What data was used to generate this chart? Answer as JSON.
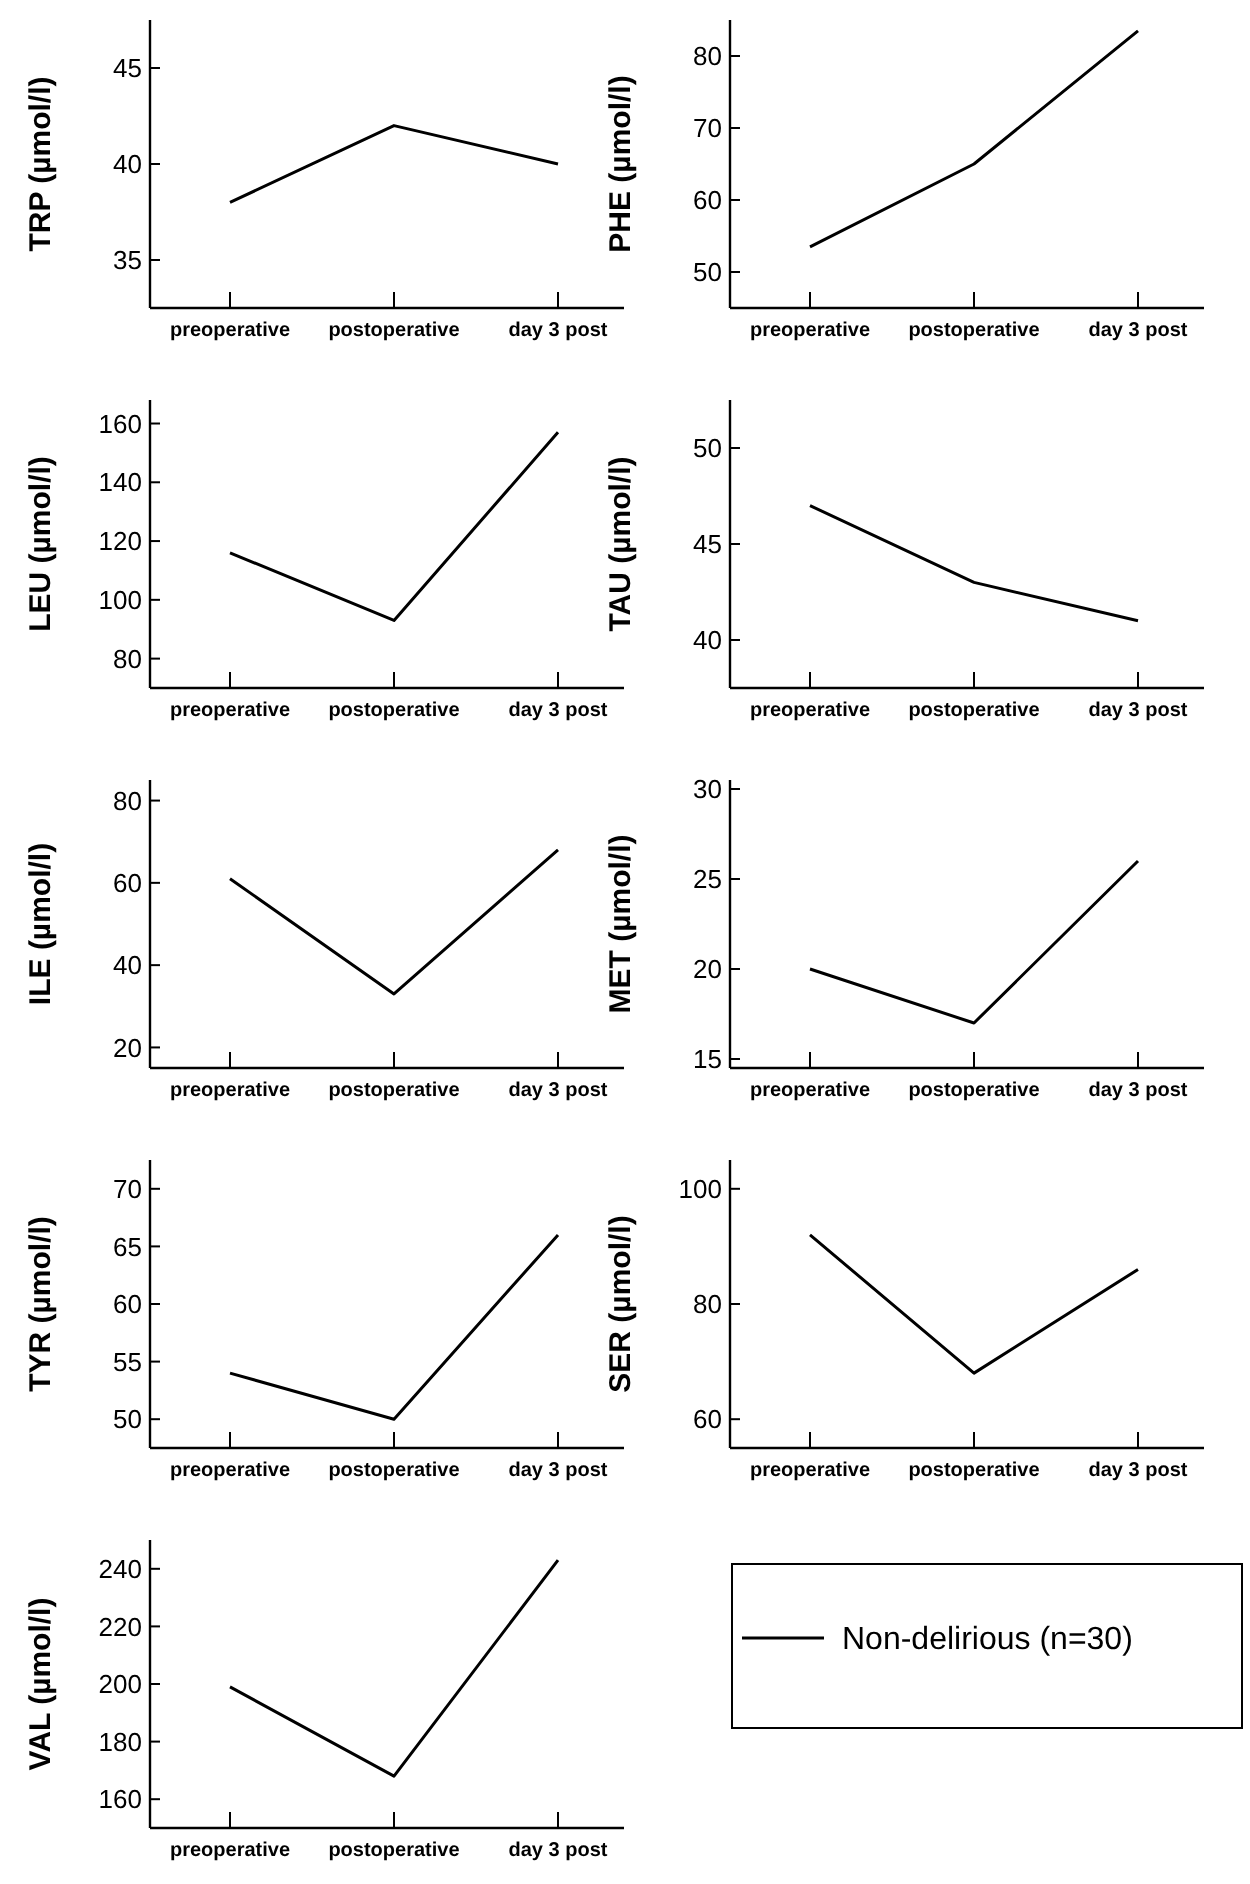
{
  "chart_data": [
    {
      "type": "line",
      "ylabel": "TRP (µmol/l)",
      "categories": [
        "preoperative",
        "postoperative",
        "day 3 post"
      ],
      "ylim": [
        32.5,
        47.5
      ],
      "yticks": [
        35,
        40,
        45
      ],
      "series": [
        {
          "color": "#000000",
          "values": [
            38,
            42,
            40
          ]
        }
      ]
    },
    {
      "type": "line",
      "ylabel": "PHE (µmol/l)",
      "categories": [
        "preoperative",
        "postoperative",
        "day 3 post"
      ],
      "ylim": [
        45,
        85
      ],
      "yticks": [
        50,
        60,
        70,
        80
      ],
      "series": [
        {
          "color": "#000000",
          "values": [
            53.5,
            65,
            83.5
          ]
        }
      ]
    },
    {
      "type": "line",
      "ylabel": "LEU (µmol/l)",
      "categories": [
        "preoperative",
        "postoperative",
        "day 3 post"
      ],
      "ylim": [
        70,
        168
      ],
      "yticks": [
        80,
        100,
        120,
        140,
        160
      ],
      "series": [
        {
          "color": "#000000",
          "values": [
            116,
            93,
            157
          ]
        }
      ]
    },
    {
      "type": "line",
      "ylabel": "TAU (µmol/l)",
      "categories": [
        "preoperative",
        "postoperative",
        "day 3 post"
      ],
      "ylim": [
        37.5,
        52.5
      ],
      "yticks": [
        40,
        45,
        50
      ],
      "series": [
        {
          "color": "#000000",
          "values": [
            47,
            43,
            41
          ]
        }
      ]
    },
    {
      "type": "line",
      "ylabel": "ILE (µmol/l)",
      "categories": [
        "preoperative",
        "postoperative",
        "day 3 post"
      ],
      "ylim": [
        15,
        85
      ],
      "yticks": [
        20,
        40,
        60,
        80
      ],
      "series": [
        {
          "color": "#000000",
          "values": [
            61,
            33,
            68
          ]
        }
      ]
    },
    {
      "type": "line",
      "ylabel": "MET (µmol/l)",
      "categories": [
        "preoperative",
        "postoperative",
        "day 3 post"
      ],
      "ylim": [
        14.5,
        30.5
      ],
      "yticks": [
        15,
        20,
        25,
        30
      ],
      "series": [
        {
          "color": "#000000",
          "values": [
            20,
            17,
            26
          ]
        }
      ]
    },
    {
      "type": "line",
      "ylabel": "TYR (µmol/l)",
      "categories": [
        "preoperative",
        "postoperative",
        "day 3 post"
      ],
      "ylim": [
        47.5,
        72.5
      ],
      "yticks": [
        50,
        55,
        60,
        65,
        70
      ],
      "series": [
        {
          "color": "#000000",
          "values": [
            54,
            50,
            66
          ]
        }
      ]
    },
    {
      "type": "line",
      "ylabel": "SER (µmol/l)",
      "categories": [
        "preoperative",
        "postoperative",
        "day 3 post"
      ],
      "ylim": [
        55,
        105
      ],
      "yticks": [
        60,
        80,
        100
      ],
      "series": [
        {
          "color": "#000000",
          "values": [
            92,
            68,
            86
          ]
        }
      ]
    },
    {
      "type": "line",
      "ylabel": "VAL (µmol/l)",
      "categories": [
        "preoperative",
        "postoperative",
        "day 3 post"
      ],
      "ylim": [
        150,
        250
      ],
      "yticks": [
        160,
        180,
        200,
        220,
        240
      ],
      "legend": "right",
      "series": [
        {
          "name": "Non-delirious (n=30)",
          "color": "#000000",
          "values": [
            199,
            168,
            243
          ]
        }
      ]
    }
  ]
}
